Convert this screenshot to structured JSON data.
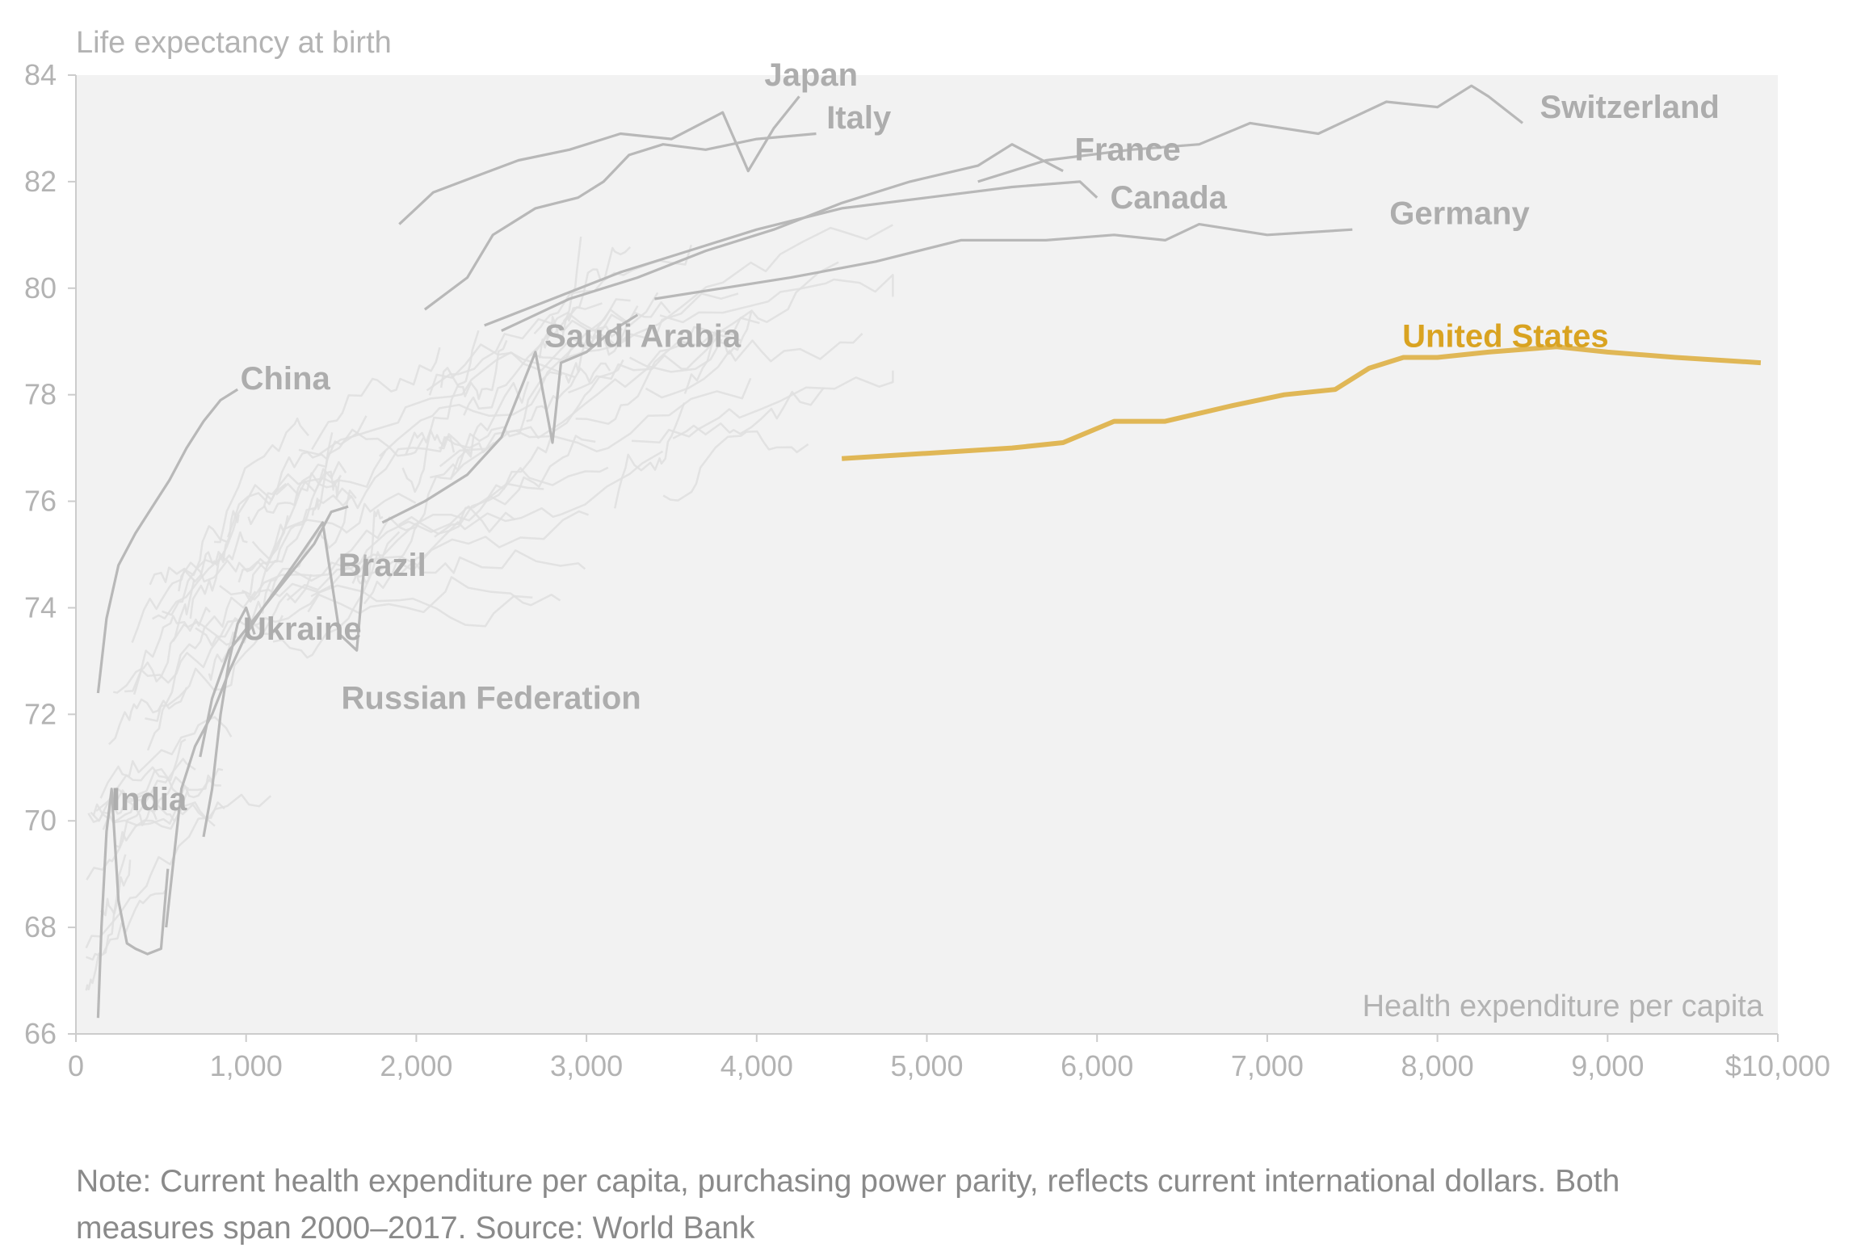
{
  "chart_data": {
    "type": "line",
    "xlabel": "Health expenditure per capita",
    "ylabel": "Life expectancy at birth",
    "xlim": [
      0,
      10000
    ],
    "ylim": [
      66,
      84
    ],
    "x_ticks": [
      0,
      1000,
      2000,
      3000,
      4000,
      5000,
      6000,
      7000,
      8000,
      9000,
      10000
    ],
    "x_tick_labels": [
      "0",
      "1,000",
      "2,000",
      "3,000",
      "4,000",
      "5,000",
      "6,000",
      "7,000",
      "8,000",
      "9,000",
      "$10,000"
    ],
    "y_ticks": [
      66,
      68,
      70,
      72,
      74,
      76,
      78,
      80,
      82,
      84
    ],
    "y_tick_labels": [
      "66",
      "68",
      "70",
      "72",
      "74",
      "76",
      "78",
      "80",
      "82",
      "84"
    ],
    "grid": false,
    "highlight_color": "#d9a321",
    "series": [
      {
        "name": "Japan",
        "label_x": 4320,
        "label_y": 83.8,
        "points": [
          [
            1900,
            81.2
          ],
          [
            2100,
            81.8
          ],
          [
            2350,
            82.1
          ],
          [
            2600,
            82.4
          ],
          [
            2900,
            82.6
          ],
          [
            3200,
            82.9
          ],
          [
            3500,
            82.8
          ],
          [
            3800,
            83.3
          ],
          [
            3950,
            82.2
          ],
          [
            4100,
            83.0
          ],
          [
            4250,
            83.6
          ]
        ]
      },
      {
        "name": "Italy",
        "label_x": 4600,
        "label_y": 83.0,
        "points": [
          [
            2050,
            79.6
          ],
          [
            2300,
            80.2
          ],
          [
            2450,
            81.0
          ],
          [
            2700,
            81.5
          ],
          [
            2950,
            81.7
          ],
          [
            3100,
            82.0
          ],
          [
            3250,
            82.5
          ],
          [
            3450,
            82.7
          ],
          [
            3700,
            82.6
          ],
          [
            4000,
            82.8
          ],
          [
            4350,
            82.9
          ]
        ]
      },
      {
        "name": "Switzerland",
        "label_x": 9130,
        "label_y": 83.2,
        "points": [
          [
            5300,
            82.0
          ],
          [
            5700,
            82.4
          ],
          [
            6200,
            82.6
          ],
          [
            6600,
            82.7
          ],
          [
            6900,
            83.1
          ],
          [
            7300,
            82.9
          ],
          [
            7700,
            83.5
          ],
          [
            8000,
            83.4
          ],
          [
            8200,
            83.8
          ],
          [
            8300,
            83.6
          ],
          [
            8500,
            83.1
          ]
        ]
      },
      {
        "name": "France",
        "label_x": 6180,
        "label_y": 82.4,
        "points": [
          [
            2500,
            79.2
          ],
          [
            2900,
            79.8
          ],
          [
            3300,
            80.2
          ],
          [
            3700,
            80.7
          ],
          [
            4100,
            81.1
          ],
          [
            4500,
            81.6
          ],
          [
            4900,
            82.0
          ],
          [
            5300,
            82.3
          ],
          [
            5500,
            82.7
          ],
          [
            5800,
            82.2
          ]
        ]
      },
      {
        "name": "Canada",
        "label_x": 6420,
        "label_y": 81.5,
        "points": [
          [
            2400,
            79.3
          ],
          [
            2800,
            79.8
          ],
          [
            3200,
            80.3
          ],
          [
            3600,
            80.7
          ],
          [
            4000,
            81.1
          ],
          [
            4500,
            81.5
          ],
          [
            5000,
            81.7
          ],
          [
            5500,
            81.9
          ],
          [
            5900,
            82.0
          ],
          [
            6000,
            81.7
          ]
        ]
      },
      {
        "name": "Germany",
        "label_x": 8130,
        "label_y": 81.2,
        "points": [
          [
            3400,
            79.8
          ],
          [
            3800,
            80.0
          ],
          [
            4200,
            80.2
          ],
          [
            4700,
            80.5
          ],
          [
            5200,
            80.9
          ],
          [
            5700,
            80.9
          ],
          [
            6100,
            81.0
          ],
          [
            6400,
            80.9
          ],
          [
            6600,
            81.2
          ],
          [
            7000,
            81.0
          ],
          [
            7500,
            81.1
          ]
        ]
      },
      {
        "name": "Saudi Arabia",
        "label_x": 3330,
        "label_y": 78.9,
        "points": [
          [
            1800,
            75.6
          ],
          [
            2050,
            76.0
          ],
          [
            2300,
            76.5
          ],
          [
            2500,
            77.2
          ],
          [
            2700,
            78.8
          ],
          [
            2800,
            77.1
          ],
          [
            2850,
            78.6
          ],
          [
            3000,
            78.8
          ],
          [
            3150,
            79.2
          ],
          [
            3300,
            79.5
          ]
        ]
      },
      {
        "name": "China",
        "label_x": 1230,
        "label_y": 78.1,
        "points": [
          [
            130,
            72.4
          ],
          [
            180,
            73.8
          ],
          [
            250,
            74.8
          ],
          [
            350,
            75.4
          ],
          [
            450,
            75.9
          ],
          [
            550,
            76.4
          ],
          [
            650,
            77.0
          ],
          [
            750,
            77.5
          ],
          [
            850,
            77.9
          ],
          [
            950,
            78.1
          ]
        ]
      },
      {
        "name": "Brazil",
        "label_x": 1800,
        "label_y": 74.6,
        "points": [
          [
            730,
            71.2
          ],
          [
            800,
            72.3
          ],
          [
            900,
            73.2
          ],
          [
            1000,
            73.6
          ],
          [
            1100,
            74.0
          ],
          [
            1200,
            74.4
          ],
          [
            1300,
            74.8
          ],
          [
            1400,
            75.2
          ],
          [
            1500,
            75.8
          ],
          [
            1600,
            75.9
          ]
        ]
      },
      {
        "name": "Ukraine",
        "label_x": 1330,
        "label_y": 73.4,
        "points": [
          [
            750,
            69.7
          ],
          [
            800,
            70.6
          ],
          [
            850,
            72.0
          ],
          [
            900,
            73.0
          ],
          [
            950,
            73.7
          ],
          [
            1000,
            74.0
          ],
          [
            1050,
            73.5
          ]
        ]
      },
      {
        "name": "Russian Federation",
        "label_x": 2440,
        "label_y": 72.1,
        "points": [
          [
            530,
            68.0
          ],
          [
            620,
            70.6
          ],
          [
            700,
            71.4
          ],
          [
            800,
            72.0
          ],
          [
            900,
            72.8
          ],
          [
            1000,
            73.5
          ],
          [
            1100,
            74.0
          ],
          [
            1300,
            74.9
          ],
          [
            1450,
            75.6
          ],
          [
            1550,
            73.5
          ],
          [
            1650,
            73.2
          ],
          [
            1700,
            75.0
          ]
        ]
      },
      {
        "name": "India",
        "label_x": 430,
        "label_y": 70.2,
        "points": [
          [
            130,
            66.3
          ],
          [
            150,
            68.0
          ],
          [
            180,
            69.8
          ],
          [
            210,
            70.6
          ],
          [
            250,
            68.5
          ],
          [
            300,
            67.7
          ],
          [
            350,
            67.6
          ],
          [
            420,
            67.5
          ],
          [
            500,
            67.6
          ],
          [
            540,
            69.1
          ]
        ]
      },
      {
        "name": "United States",
        "label_x": 8400,
        "label_y": 78.9,
        "highlight": true,
        "points": [
          [
            4500,
            76.8
          ],
          [
            5000,
            76.9
          ],
          [
            5500,
            77.0
          ],
          [
            5800,
            77.1
          ],
          [
            6100,
            77.5
          ],
          [
            6400,
            77.5
          ],
          [
            6800,
            77.8
          ],
          [
            7100,
            78.0
          ],
          [
            7400,
            78.1
          ],
          [
            7600,
            78.5
          ],
          [
            7800,
            78.7
          ],
          [
            8000,
            78.7
          ],
          [
            8300,
            78.8
          ],
          [
            8700,
            78.9
          ],
          [
            9000,
            78.8
          ],
          [
            9400,
            78.7
          ],
          [
            9900,
            78.6
          ]
        ]
      }
    ]
  },
  "note": {
    "text": "Note: Current health expenditure per capita, purchasing power parity, reflects current international dollars. Both\n measures span 2000–2017. Source: World Bank"
  }
}
